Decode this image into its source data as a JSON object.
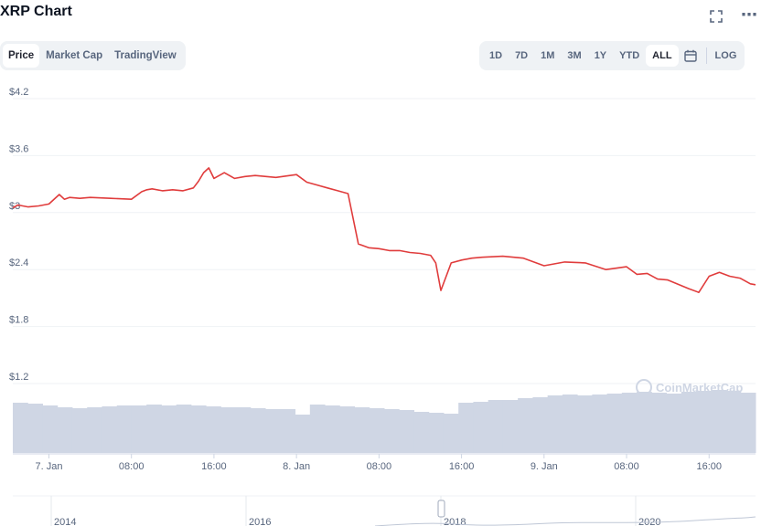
{
  "header": {
    "title": "XRP Chart",
    "fullscreen_icon": "fullscreen-icon",
    "more_icon": "more-icon"
  },
  "tabs": [
    {
      "label": "Price",
      "active": true
    },
    {
      "label": "Market Cap",
      "active": false
    },
    {
      "label": "TradingView",
      "active": false
    }
  ],
  "ranges": [
    {
      "label": "1D",
      "active": false
    },
    {
      "label": "7D",
      "active": false
    },
    {
      "label": "1M",
      "active": false
    },
    {
      "label": "3M",
      "active": false
    },
    {
      "label": "1Y",
      "active": false
    },
    {
      "label": "YTD",
      "active": false
    },
    {
      "label": "ALL",
      "active": true
    }
  ],
  "calendar_icon": "calendar-icon",
  "log_label": "LOG",
  "watermark": "CoinMarketCap",
  "colors": {
    "line": "#e03c3c",
    "volume": "#cfd6e4",
    "grid": "#eff2f5",
    "axis_text": "#58667e"
  },
  "chart_data": {
    "type": "line",
    "y_ticks": [
      "$4.2",
      "$3.6",
      "$3",
      "$2.4",
      "$1.8",
      "$1.2"
    ],
    "y_tick_values": [
      4.2,
      3.6,
      3.0,
      2.4,
      1.8,
      1.2
    ],
    "ylim": [
      1.0,
      4.2
    ],
    "x_ticks": [
      "7. Jan",
      "08:00",
      "16:00",
      "8. Jan",
      "08:00",
      "16:00",
      "9. Jan",
      "08:00",
      "16:00"
    ],
    "x_tick_hours": [
      0,
      8,
      16,
      24,
      32,
      40,
      48,
      56,
      64
    ],
    "xlim_hours": [
      -3.5,
      68.5
    ],
    "grid": true,
    "series": [
      {
        "type": "line",
        "x_hours": [
          -3.5,
          -3,
          -2,
          -1,
          0,
          1,
          1.5,
          2,
          3,
          4,
          6,
          8,
          9,
          9.5,
          10,
          11,
          12,
          13,
          14,
          14.5,
          15,
          15.5,
          16,
          17,
          18,
          19,
          20,
          22,
          24,
          25,
          26,
          27,
          28,
          29,
          30,
          31,
          32,
          33,
          34,
          35,
          36,
          37,
          37.5,
          38,
          39,
          40,
          41,
          42,
          44,
          46,
          48,
          50,
          52,
          54,
          56,
          57,
          58,
          59,
          60,
          62,
          63,
          64,
          65,
          66,
          67,
          68,
          68.5
        ],
        "values": [
          3.05,
          3.08,
          3.06,
          3.07,
          3.09,
          3.19,
          3.14,
          3.16,
          3.15,
          3.16,
          3.15,
          3.14,
          3.22,
          3.24,
          3.25,
          3.23,
          3.24,
          3.23,
          3.26,
          3.33,
          3.42,
          3.47,
          3.36,
          3.42,
          3.36,
          3.38,
          3.39,
          3.37,
          3.4,
          3.32,
          3.29,
          3.26,
          3.23,
          3.2,
          2.67,
          2.63,
          2.62,
          2.6,
          2.6,
          2.58,
          2.57,
          2.55,
          2.47,
          2.18,
          2.47,
          2.5,
          2.52,
          2.53,
          2.54,
          2.52,
          2.44,
          2.48,
          2.47,
          2.4,
          2.43,
          2.35,
          2.36,
          2.3,
          2.29,
          2.2,
          2.16,
          2.33,
          2.37,
          2.33,
          2.31,
          2.25,
          2.24
        ]
      }
    ],
    "volume_bars_relative": [
      0.55,
      0.54,
      0.52,
      0.5,
      0.49,
      0.5,
      0.51,
      0.52,
      0.52,
      0.53,
      0.52,
      0.53,
      0.52,
      0.51,
      0.5,
      0.5,
      0.49,
      0.48,
      0.48,
      0.42,
      0.53,
      0.52,
      0.51,
      0.5,
      0.49,
      0.48,
      0.47,
      0.45,
      0.44,
      0.43,
      0.55,
      0.56,
      0.58,
      0.58,
      0.6,
      0.61,
      0.63,
      0.64,
      0.63,
      0.64,
      0.65,
      0.66,
      0.67,
      0.66,
      0.65,
      0.67,
      0.68,
      0.69,
      0.68,
      0.66
    ],
    "navigator": {
      "x_ticks": [
        "2014",
        "2016",
        "2018",
        "2020"
      ]
    }
  }
}
